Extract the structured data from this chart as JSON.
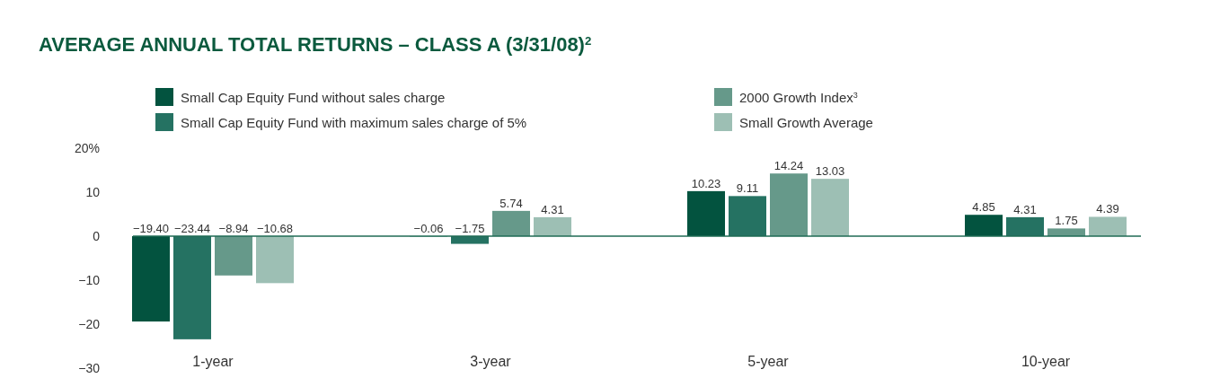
{
  "chart_data": {
    "type": "bar",
    "title": "AVERAGE ANNUAL TOTAL RETURNS – CLASS A (3/31/08)$^{2}$",
    "categories": [
      "1-year",
      "3-year",
      "5-year",
      "10-year"
    ],
    "series": [
      {
        "name": "Small Cap Equity Fund without sales charge",
        "color": "#03533f",
        "values": [
          -19.4,
          -0.06,
          10.23,
          4.85
        ],
        "value_labels": [
          "−19.40",
          "−0.06",
          "10.23",
          "4.85"
        ]
      },
      {
        "name": "Small Cap Equity Fund with maximum sales charge of 5%",
        "color": "#257262",
        "values": [
          -23.44,
          -1.75,
          9.11,
          4.31
        ],
        "value_labels": [
          "−23.44",
          "−1.75",
          "9.11",
          "4.31"
        ]
      },
      {
        "name": "2000 Growth Index$^{3}$",
        "color": "#66998a",
        "values": [
          -8.94,
          5.74,
          14.24,
          1.75
        ],
        "value_labels": [
          "−8.94",
          "5.74",
          "14.24",
          "1.75"
        ]
      },
      {
        "name": "Small Growth Average",
        "color": "#9dbfb4",
        "values": [
          -10.68,
          4.31,
          13.03,
          4.39
        ],
        "value_labels": [
          "−10.68",
          "4.31",
          "13.03",
          "4.39"
        ]
      }
    ],
    "ylim": [
      -30,
      20
    ],
    "yticks": [
      {
        "value": 20,
        "label": "20%"
      },
      10,
      0,
      {
        "value": -10,
        "label": "−10"
      },
      {
        "value": -20,
        "label": "−20"
      },
      {
        "value": -30,
        "label": "−30"
      }
    ],
    "ref_lines": [
      {
        "axis": "y",
        "value": 0,
        "color": "#1f6b55"
      }
    ],
    "grid": false,
    "legend": "top"
  }
}
